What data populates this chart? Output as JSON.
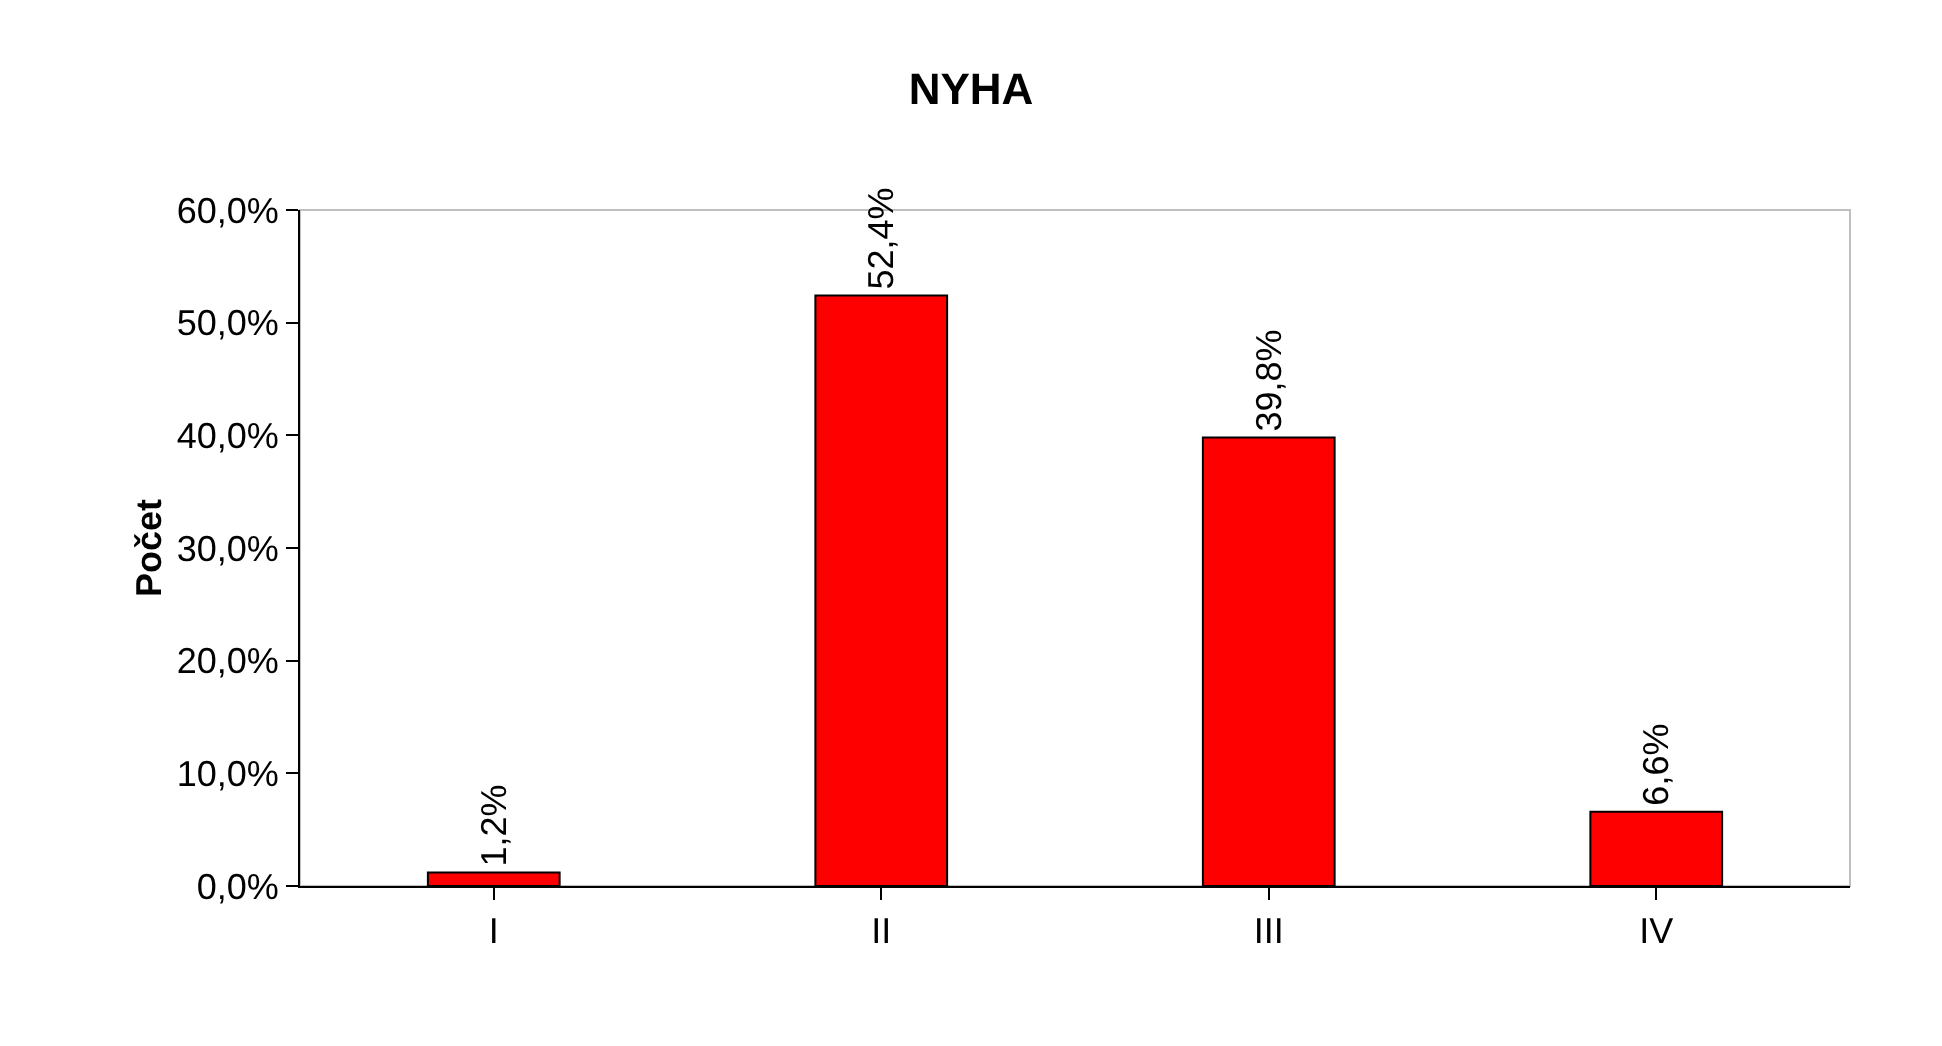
{
  "chart_data": {
    "type": "bar",
    "title": "NYHA",
    "ylabel": "Počet",
    "categories": [
      "I",
      "II",
      "III",
      "IV"
    ],
    "values": [
      1.2,
      52.4,
      39.8,
      6.6
    ],
    "value_labels": [
      "1,2%",
      "52,4%",
      "39,8%",
      "6,6%"
    ],
    "color": "#ff0000",
    "ylim": [
      0,
      60
    ],
    "yticks": [
      {
        "value": 0,
        "label": "0,0%"
      },
      {
        "value": 10,
        "label": "10,0%"
      },
      {
        "value": 20,
        "label": "20,0%"
      },
      {
        "value": 30,
        "label": "30,0%"
      },
      {
        "value": 40,
        "label": "40,0%"
      },
      {
        "value": 50,
        "label": "50,0%"
      },
      {
        "value": 60,
        "label": "60,0%"
      }
    ],
    "grid": false,
    "legend": false
  }
}
